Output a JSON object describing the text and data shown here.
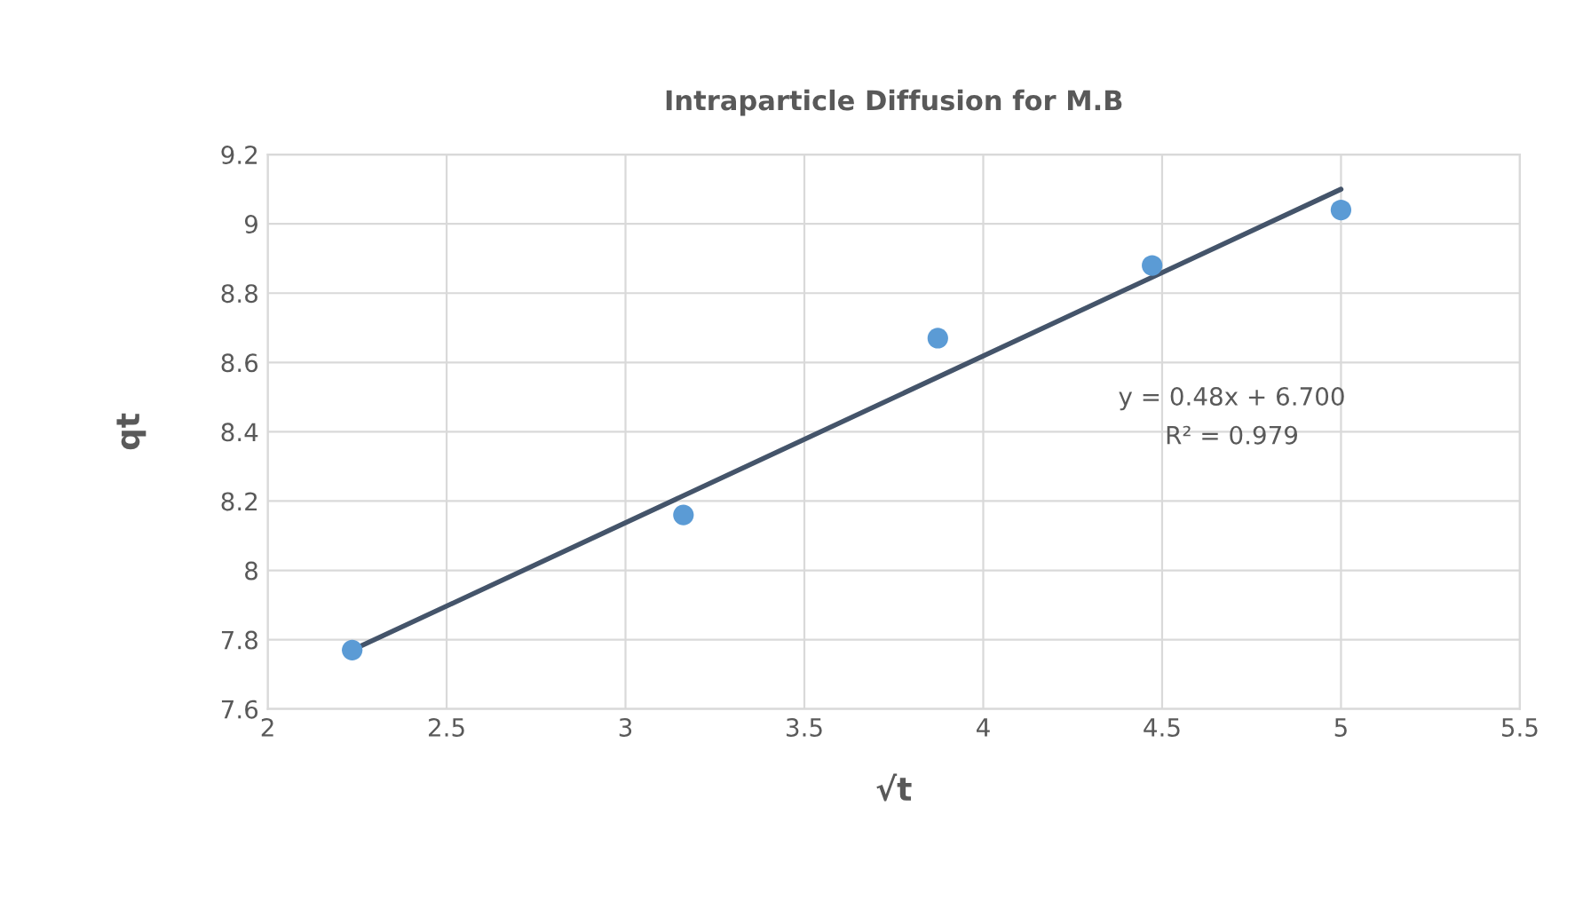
{
  "chart_data": {
    "type": "scatter",
    "title": "Intraparticle Diffusion for M.B",
    "xlabel": "√t",
    "ylabel": "qt",
    "xlim": [
      2,
      5.5
    ],
    "xticks": [
      2,
      2.5,
      3,
      3.5,
      4,
      4.5,
      5,
      5.5
    ],
    "ylim": [
      7.6,
      9.2
    ],
    "yticks": [
      7.6,
      7.8,
      8,
      8.2,
      8.4,
      8.6,
      8.8,
      9,
      9.2
    ],
    "grid": true,
    "legend": false,
    "series": [
      {
        "color": "#5b9bd5",
        "marker": "circle",
        "x": [
          2.236,
          3.162,
          3.873,
          4.472,
          5.0
        ],
        "values": [
          7.77,
          8.16,
          8.67,
          8.88,
          9.04
        ]
      },
      {
        "type": "line",
        "color": "#44546a",
        "marker": "none",
        "line_style": "solid",
        "x": [
          2.236,
          5.0
        ],
        "values": [
          7.77,
          9.1
        ]
      }
    ],
    "annotations": [
      "y = 0.48x + 6.700",
      "R² = 0.979"
    ]
  }
}
